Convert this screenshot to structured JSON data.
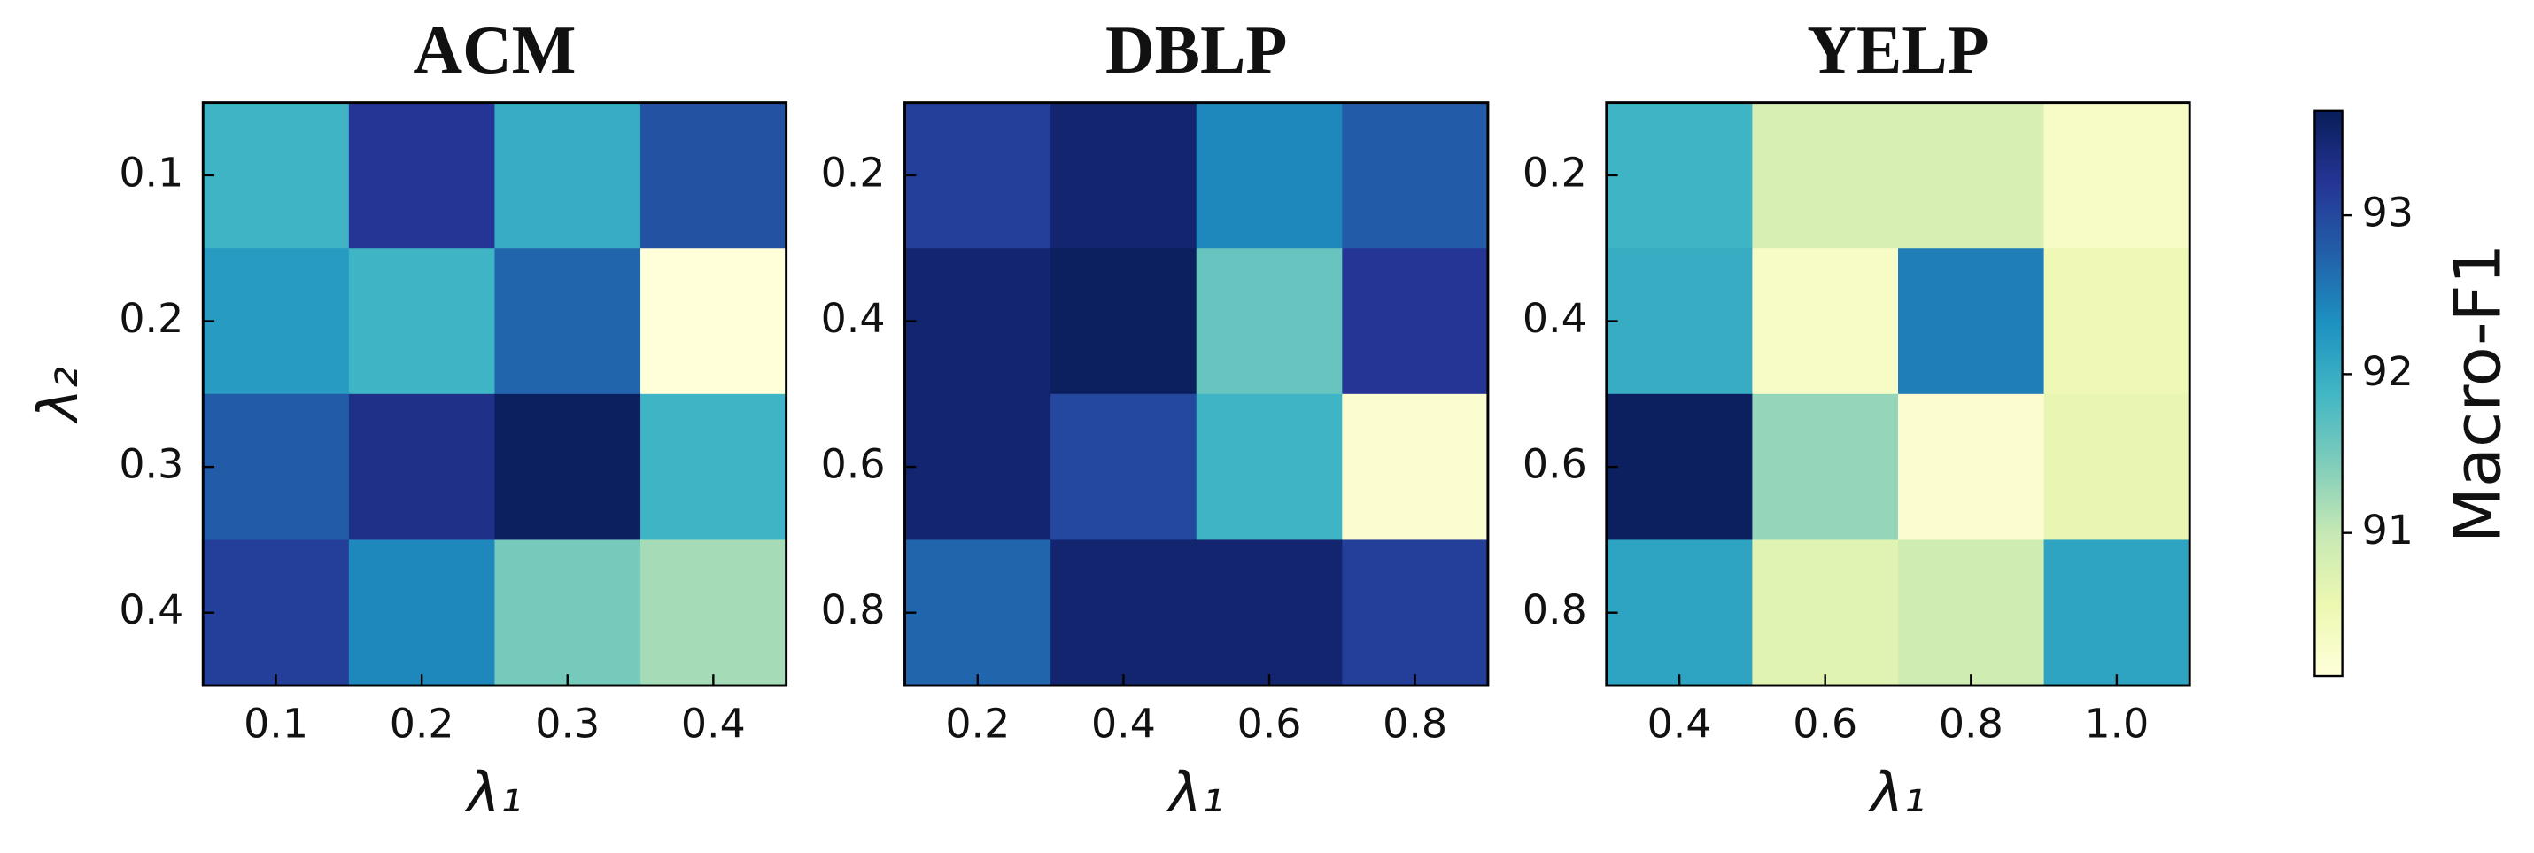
{
  "chart_data": [
    {
      "type": "heatmap",
      "title": "ACM",
      "x_label": "λ₁",
      "y_label": "λ₂",
      "x_categories": [
        "0.1",
        "0.2",
        "0.3",
        "0.4"
      ],
      "y_categories": [
        "0.1",
        "0.2",
        "0.3",
        "0.4"
      ],
      "values": [
        [
          91.9,
          93.2,
          92.0,
          92.9
        ],
        [
          92.2,
          91.9,
          92.7,
          90.1
        ],
        [
          92.8,
          93.3,
          93.6,
          91.9
        ],
        [
          93.1,
          92.4,
          91.5,
          91.2
        ]
      ]
    },
    {
      "type": "heatmap",
      "title": "DBLP",
      "x_label": "λ₁",
      "x_categories": [
        "0.2",
        "0.4",
        "0.6",
        "0.8"
      ],
      "y_categories": [
        "0.2",
        "0.4",
        "0.6",
        "0.8"
      ],
      "values": [
        [
          93.1,
          93.5,
          92.4,
          92.8
        ],
        [
          93.5,
          93.6,
          91.6,
          93.2
        ],
        [
          93.5,
          93.0,
          91.9,
          90.2
        ],
        [
          92.7,
          93.5,
          93.5,
          93.1
        ]
      ]
    },
    {
      "type": "heatmap",
      "title": "YELP",
      "x_label": "λ₁",
      "x_categories": [
        "0.4",
        "0.6",
        "0.8",
        "1.0"
      ],
      "y_categories": [
        "0.2",
        "0.4",
        "0.6",
        "0.8"
      ],
      "values": [
        [
          91.9,
          90.8,
          90.8,
          90.3
        ],
        [
          92.0,
          90.3,
          92.5,
          90.5
        ],
        [
          93.6,
          91.3,
          90.2,
          90.6
        ],
        [
          92.1,
          90.7,
          90.9,
          92.1
        ]
      ]
    }
  ],
  "colorbar": {
    "label": "Macro-F1",
    "lim": [
      90.1,
      93.66
    ],
    "ticks": [
      91,
      92,
      93
    ],
    "colormap": "YlGnBu"
  }
}
